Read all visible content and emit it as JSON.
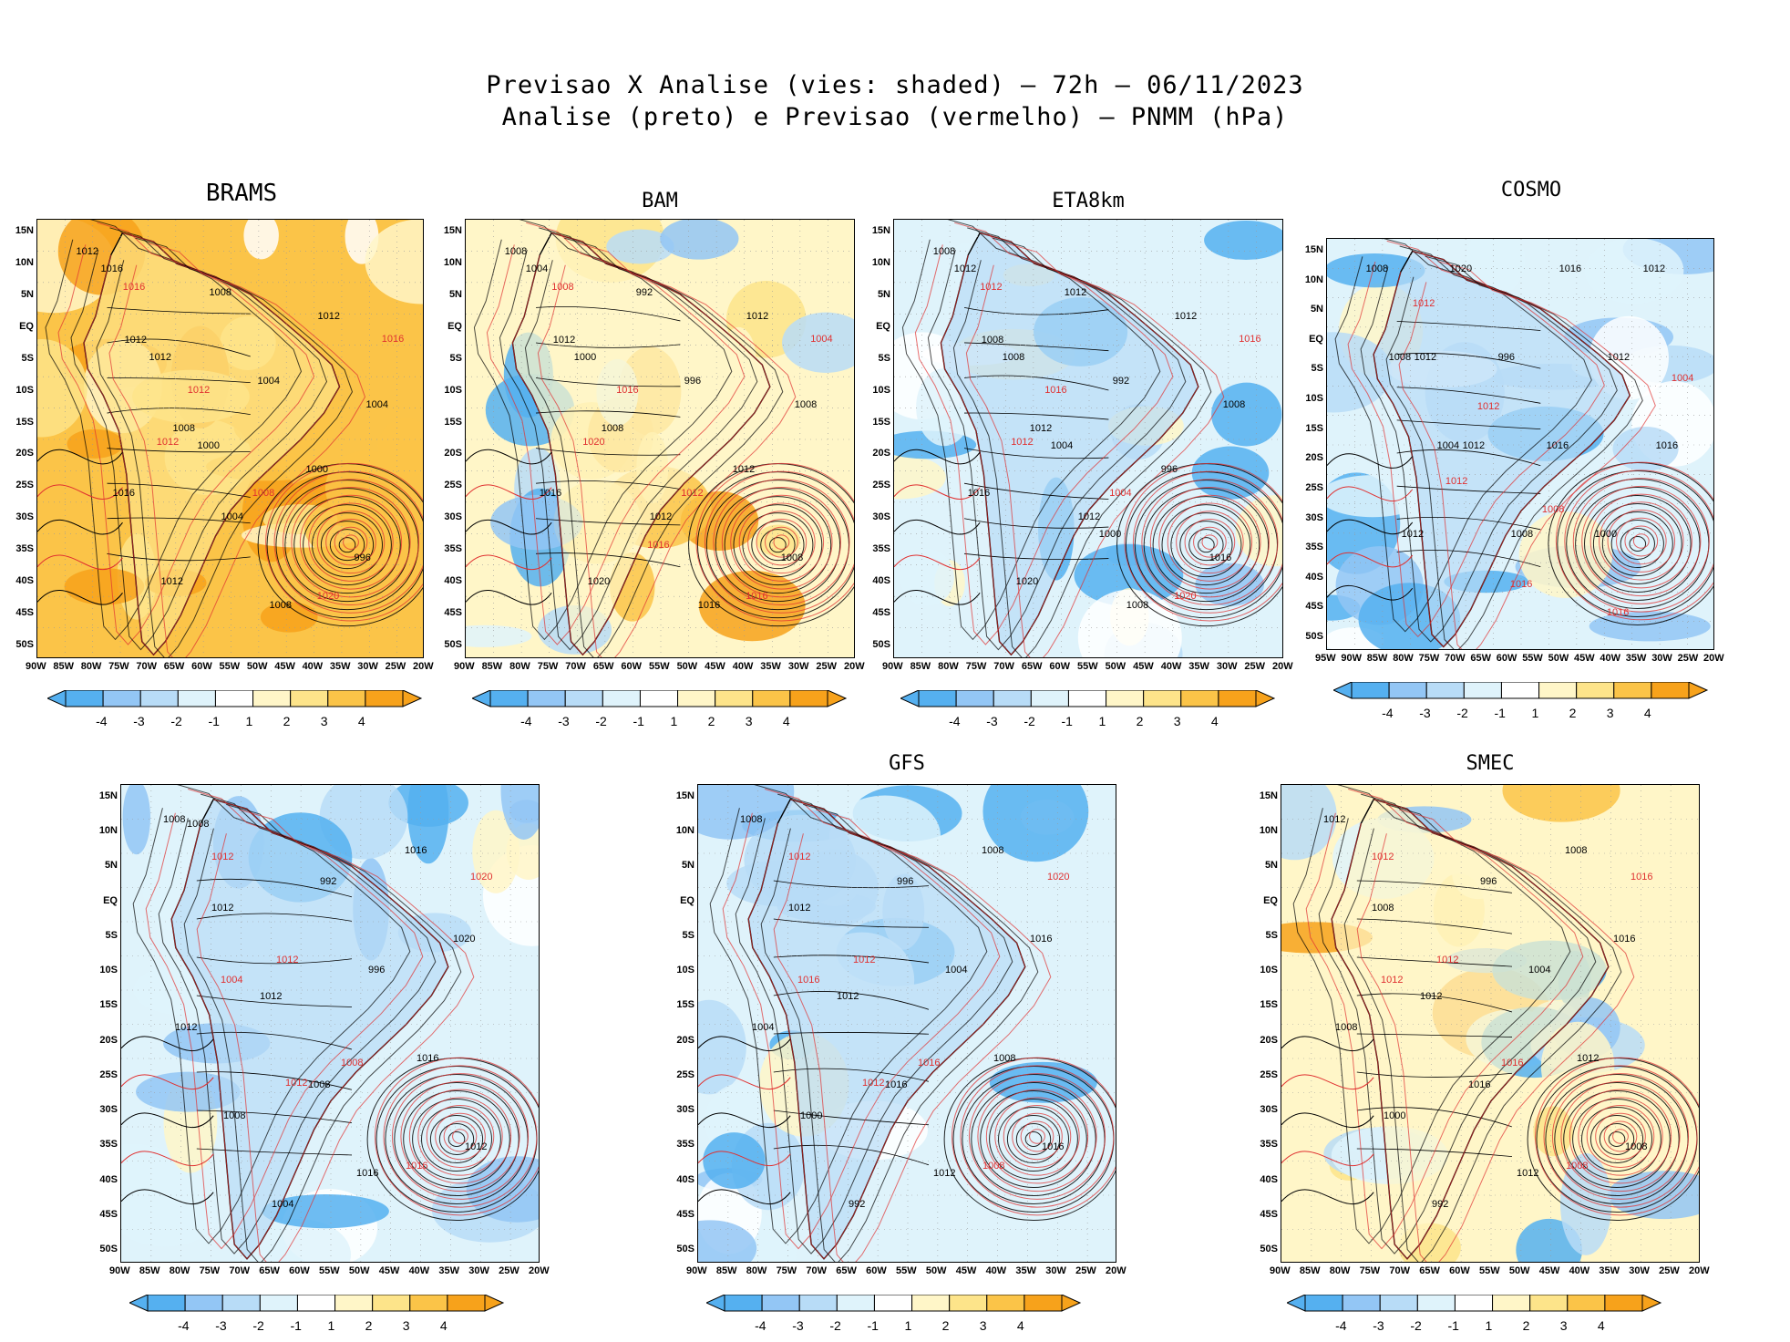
{
  "header": {
    "line1": "Previsao X Analise (vies: shaded) – 72h – 06/11/2023",
    "line2": "Analise (preto) e Previsao (vermelho) – PNMM (hPa)"
  },
  "colors": {
    "neg4": "#55b0f0",
    "neg3": "#93c6f5",
    "neg2": "#b8dcf7",
    "neg1": "#dff3fb",
    "zero": "#ffffff",
    "pos1": "#fff6c8",
    "pos2": "#fde48a",
    "pos3": "#fbc448",
    "pos4": "#f7a21b",
    "analysis": "#000000",
    "forecast": "#e03030"
  },
  "colorbar": {
    "labels": [
      "-4",
      "-3",
      "-2",
      "-1",
      "1",
      "2",
      "3",
      "4"
    ]
  },
  "lat_labels": [
    "15N",
    "10N",
    "5N",
    "EQ",
    "5S",
    "10S",
    "15S",
    "20S",
    "25S",
    "30S",
    "35S",
    "40S",
    "45S",
    "50S"
  ],
  "lon_labels_a": [
    "90W",
    "85W",
    "80W",
    "75W",
    "70W",
    "65W",
    "60W",
    "55W",
    "50W",
    "45W",
    "40W",
    "35W",
    "30W",
    "25W",
    "20W"
  ],
  "lon_labels_b": [
    "95W",
    "90W",
    "85W",
    "80W",
    "75W",
    "70W",
    "65W",
    "60W",
    "55W",
    "50W",
    "45W",
    "40W",
    "35W",
    "30W",
    "25W",
    "20W"
  ],
  "panels": [
    {
      "id": "brams",
      "title": "BRAMS",
      "bias": "pos",
      "iso_black": [
        "1012",
        "1012",
        "1008",
        "1004",
        "1008",
        "1012",
        "1004",
        "1016",
        "1012",
        "1008",
        "1004",
        "1000",
        "996",
        "1016",
        "1012",
        "1000"
      ],
      "iso_red": [
        "1016",
        "1012",
        "1008",
        "1020",
        "1016",
        "1012"
      ]
    },
    {
      "id": "bam",
      "title": "BAM",
      "bias": "mix",
      "iso_black": [
        "1008",
        "1012",
        "1008",
        "1012",
        "1016",
        "1012",
        "1008",
        "1016",
        "1020",
        "992",
        "996",
        "1012",
        "1008",
        "1004",
        "1000"
      ],
      "iso_red": [
        "1008",
        "1016",
        "1012",
        "1016",
        "1004",
        "1020",
        "1016"
      ]
    },
    {
      "id": "eta",
      "title": "ETA8km",
      "bias": "neg",
      "iso_black": [
        "1008",
        "1008",
        "1012",
        "1012",
        "1008",
        "1012",
        "1008",
        "1016",
        "1020",
        "1012",
        "992",
        "996",
        "1016",
        "1012",
        "1008",
        "1004",
        "1000"
      ],
      "iso_red": [
        "1012",
        "1016",
        "1004",
        "1020",
        "1016",
        "1012"
      ]
    },
    {
      "id": "cosmo",
      "title": "COSMO",
      "bias": "neg",
      "iso_black": [
        "1008",
        "1012",
        "1012",
        "1008",
        "1016",
        "1012",
        "1016",
        "1012",
        "1020",
        "996",
        "1016",
        "1000",
        "1012",
        "1008",
        "1004"
      ],
      "iso_red": [
        "1012",
        "1012",
        "1008",
        "1016",
        "1004",
        "1012",
        "1016"
      ]
    },
    {
      "id": "mix",
      "title": "",
      "bias": "neg",
      "iso_black": [
        "1008",
        "1012",
        "1012",
        "1008",
        "1016",
        "1016",
        "1020",
        "1012",
        "1008",
        "1004",
        "992",
        "996",
        "1016",
        "1012",
        "1008"
      ],
      "iso_red": [
        "1012",
        "1012",
        "1008",
        "1016",
        "1020",
        "1004",
        "1012"
      ]
    },
    {
      "id": "gfs",
      "title": "GFS",
      "bias": "neg",
      "iso_black": [
        "1008",
        "1012",
        "1012",
        "1016",
        "1012",
        "1008",
        "1016",
        "1004",
        "1000",
        "992",
        "996",
        "1004",
        "1008",
        "1016"
      ],
      "iso_red": [
        "1012",
        "1012",
        "1016",
        "1008",
        "1020",
        "1016",
        "1012"
      ]
    },
    {
      "id": "smec",
      "title": "SMEC",
      "bias": "mix",
      "iso_black": [
        "1012",
        "1008",
        "1012",
        "1016",
        "1012",
        "1008",
        "1016",
        "1008",
        "1000",
        "992",
        "996",
        "1004",
        "1012",
        "1008"
      ],
      "iso_red": [
        "1012",
        "1012",
        "1016",
        "1008",
        "1016",
        "1012"
      ]
    }
  ]
}
